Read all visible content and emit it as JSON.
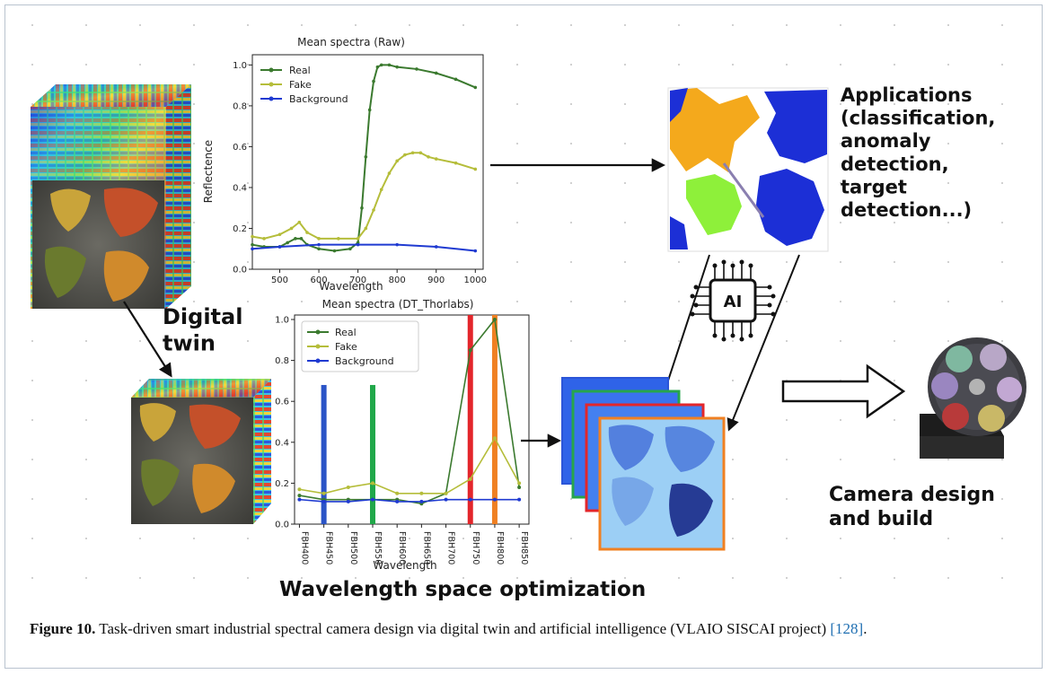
{
  "diagram": {
    "labels": {
      "digital_twin": "Digital\ntwin",
      "applications": "Applications\n(classification,\nanomaly\ndetection,\ntarget\ndetection...)",
      "wavelength_opt": "Wavelength space optimization",
      "camera": "Camera design\nand build",
      "ai": "AI"
    }
  },
  "charts": {
    "raw": {
      "type": "line",
      "title": "Mean spectra (Raw)",
      "xlabel": "Wavelength",
      "ylabel": "Reflectence",
      "xlim": [
        430,
        1020
      ],
      "ylim": [
        0,
        1.05
      ],
      "xticks": [
        500,
        600,
        700,
        800,
        900,
        1000
      ],
      "yticks": [
        0.0,
        0.2,
        0.4,
        0.6,
        0.8,
        1.0
      ],
      "legend": "top-left",
      "series": [
        {
          "name": "Real",
          "color": "#3b7a2f",
          "x": [
            430,
            460,
            500,
            520,
            540,
            555,
            570,
            600,
            640,
            680,
            700,
            710,
            720,
            730,
            740,
            750,
            760,
            780,
            800,
            850,
            900,
            950,
            1000
          ],
          "y": [
            0.12,
            0.11,
            0.11,
            0.13,
            0.15,
            0.15,
            0.12,
            0.1,
            0.09,
            0.1,
            0.13,
            0.3,
            0.55,
            0.78,
            0.92,
            0.99,
            1.0,
            1.0,
            0.99,
            0.98,
            0.96,
            0.93,
            0.89
          ]
        },
        {
          "name": "Fake",
          "color": "#b5bd3a",
          "x": [
            430,
            460,
            500,
            530,
            550,
            570,
            600,
            650,
            700,
            720,
            740,
            760,
            780,
            800,
            820,
            840,
            860,
            880,
            900,
            950,
            1000
          ],
          "y": [
            0.16,
            0.15,
            0.17,
            0.2,
            0.23,
            0.18,
            0.15,
            0.15,
            0.15,
            0.2,
            0.29,
            0.39,
            0.47,
            0.53,
            0.56,
            0.57,
            0.57,
            0.55,
            0.54,
            0.52,
            0.49
          ]
        },
        {
          "name": "Background",
          "color": "#1f3ad1",
          "x": [
            430,
            500,
            600,
            700,
            800,
            900,
            1000
          ],
          "y": [
            0.1,
            0.11,
            0.12,
            0.12,
            0.12,
            0.11,
            0.09
          ]
        }
      ]
    },
    "dt": {
      "type": "line",
      "title": "Mean spectra (DT_Thorlabs)",
      "xlabel": "Wavelength",
      "categories": [
        "FBH400",
        "FBH450",
        "FBH500",
        "FBH550",
        "FBH600",
        "FBH650",
        "FBH700",
        "FBH750",
        "FBH800",
        "FBH850"
      ],
      "yticks": [
        0.0,
        0.2,
        0.4,
        0.6,
        0.8,
        1.0
      ],
      "ylim": [
        0,
        1.0
      ],
      "legend": "top-left",
      "series": [
        {
          "name": "Real",
          "color": "#3b7a2f",
          "values": [
            0.14,
            0.12,
            0.12,
            0.12,
            0.12,
            0.1,
            0.15,
            0.85,
            1.0,
            0.18
          ]
        },
        {
          "name": "Fake",
          "color": "#b5bd3a",
          "values": [
            0.17,
            0.15,
            0.18,
            0.2,
            0.15,
            0.15,
            0.15,
            0.22,
            0.42,
            0.2
          ]
        },
        {
          "name": "Background",
          "color": "#1f3ad1",
          "values": [
            0.12,
            0.11,
            0.11,
            0.12,
            0.11,
            0.11,
            0.12,
            0.12,
            0.12,
            0.12
          ]
        }
      ],
      "highlight_bands": [
        {
          "category": "FBH450",
          "color": "#2b54c7",
          "top": 0.68
        },
        {
          "category": "FBH550",
          "color": "#21a84a",
          "top": 0.68
        },
        {
          "category": "FBH750",
          "color": "#e3262b",
          "top": 1.0
        },
        {
          "category": "FBH800",
          "color": "#f08022",
          "top": 1.0
        }
      ]
    }
  },
  "caption": {
    "label": "Figure 10.",
    "text": " Task-driven smart industrial spectral camera design via digital twin and artificial intelligence (VLAIO SISCAI project) ",
    "ref": "[128]",
    "tail": "."
  }
}
